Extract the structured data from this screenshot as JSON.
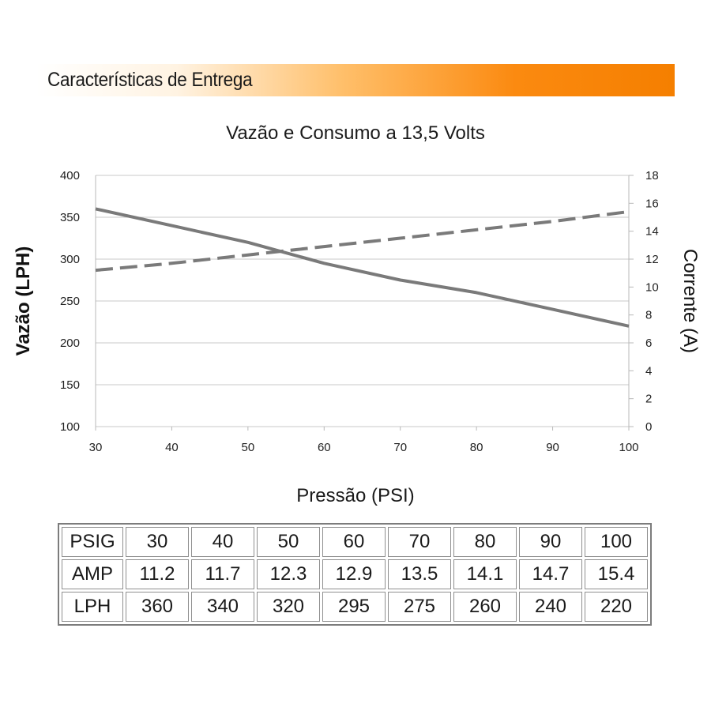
{
  "header": {
    "title": "Características de Entrega"
  },
  "chart_data": {
    "type": "line",
    "title": "Vazão e Consumo a 13,5 Volts",
    "xlabel": "Pressão (PSI)",
    "ylabel": "Vazão (LPH)",
    "y2label": "Corrente (A)",
    "x": [
      30,
      40,
      50,
      60,
      70,
      80,
      90,
      100
    ],
    "xlim": [
      30,
      100
    ],
    "ylim": [
      100,
      400
    ],
    "y2lim": [
      0,
      18
    ],
    "xticks": [
      "30",
      "40",
      "50",
      "60",
      "70",
      "80",
      "90",
      "100"
    ],
    "yticks": [
      "100",
      "150",
      "200",
      "250",
      "300",
      "350",
      "400"
    ],
    "y2ticks": [
      "0",
      "2",
      "4",
      "6",
      "8",
      "10",
      "12",
      "14",
      "16",
      "18"
    ],
    "grid": true,
    "series": [
      {
        "values": [
          360,
          340,
          320,
          295,
          275,
          260,
          240,
          220
        ],
        "axis": "left",
        "style": "solid",
        "color": "#7a7a7a"
      },
      {
        "values": [
          11.2,
          11.7,
          12.3,
          12.9,
          13.5,
          14.1,
          14.7,
          15.4
        ],
        "axis": "right",
        "style": "dashed",
        "color": "#7a7a7a"
      }
    ]
  },
  "table": {
    "rows": [
      {
        "label": "PSIG",
        "values": [
          "30",
          "40",
          "50",
          "60",
          "70",
          "80",
          "90",
          "100"
        ]
      },
      {
        "label": "AMP",
        "values": [
          "11.2",
          "11.7",
          "12.3",
          "12.9",
          "13.5",
          "14.1",
          "14.7",
          "15.4"
        ]
      },
      {
        "label": "LPH",
        "values": [
          "360",
          "340",
          "320",
          "295",
          "275",
          "260",
          "240",
          "220"
        ]
      }
    ]
  }
}
